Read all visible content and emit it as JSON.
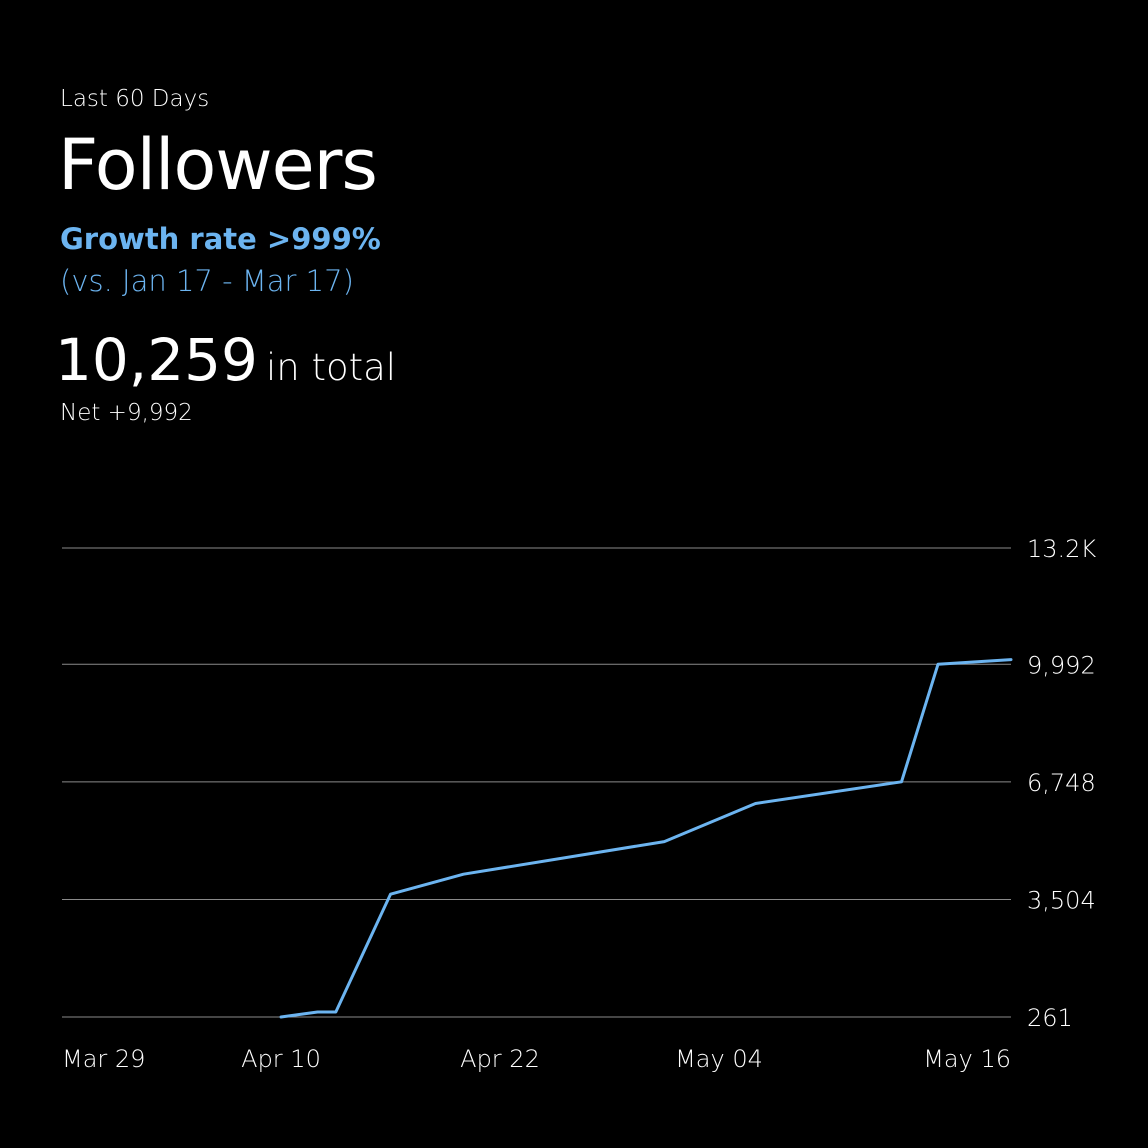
{
  "header": {
    "period": "Last 60 Days",
    "title": "Followers",
    "growth": "Growth rate >999%",
    "comparison": "(vs. Jan 17 - Mar 17)",
    "total_value": "10,259",
    "total_suffix": "in total",
    "net": "Net +9,992"
  },
  "colors": {
    "background": "#000000",
    "text": "#ffffff",
    "accent": "#6cb4f0",
    "grid": "#8a8a8a"
  },
  "chart_data": {
    "type": "line",
    "title": "",
    "xlabel": "",
    "ylabel": "",
    "grid": true,
    "legend": "none",
    "x_ticks": [
      "Mar 29",
      "Apr 10",
      "Apr 22",
      "May 04",
      "May 16"
    ],
    "y_ticks": [
      {
        "value": 261,
        "label": "261"
      },
      {
        "value": 3504,
        "label": "3,504"
      },
      {
        "value": 6748,
        "label": "6,748"
      },
      {
        "value": 9992,
        "label": "9,992"
      },
      {
        "value": 13200,
        "label": "13.2K"
      }
    ],
    "xlim": [
      "2024-03-29",
      "2024-05-20"
    ],
    "ylim": [
      261,
      13200
    ],
    "series": [
      {
        "color": "#6cb4f0",
        "points": [
          {
            "x": "2024-04-10",
            "y": 261
          },
          {
            "x": "2024-04-12",
            "y": 400
          },
          {
            "x": "2024-04-13",
            "y": 400
          },
          {
            "x": "2024-04-16",
            "y": 3650
          },
          {
            "x": "2024-04-20",
            "y": 4200
          },
          {
            "x": "2024-05-01",
            "y": 5100
          },
          {
            "x": "2024-05-06",
            "y": 6150
          },
          {
            "x": "2024-05-14",
            "y": 6750
          },
          {
            "x": "2024-05-16",
            "y": 9992
          },
          {
            "x": "2024-05-20",
            "y": 10120
          }
        ]
      }
    ]
  }
}
